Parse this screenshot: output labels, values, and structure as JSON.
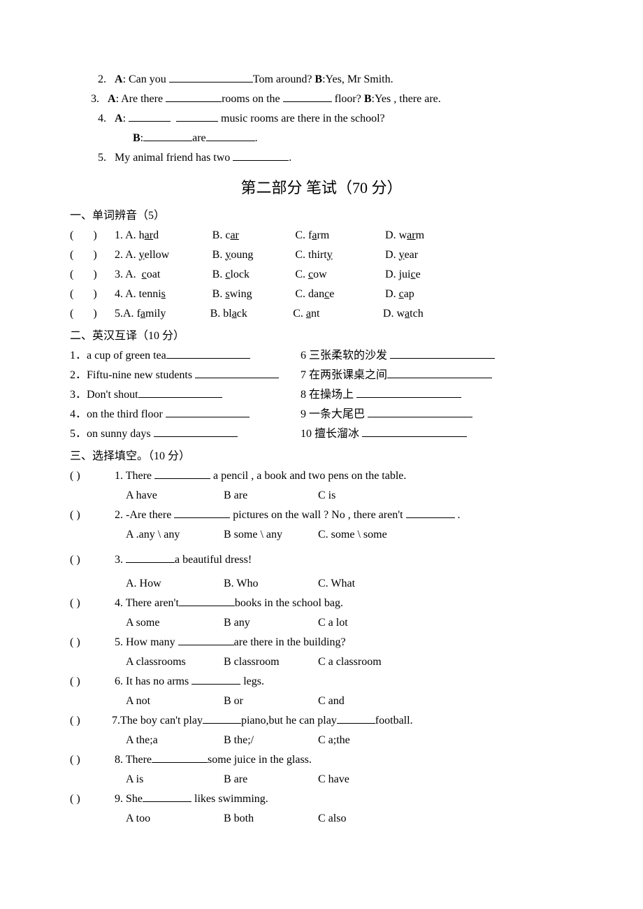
{
  "intro": {
    "q2": {
      "num": "2.",
      "a": "A",
      "t1": ": Can you ",
      "t2": "Tom around?  ",
      "b": "B",
      "t3": ":Yes,   Mr   Smith."
    },
    "q3": {
      "num": "3.",
      "a": "A",
      "t1": ": Are there  ",
      "t2": "rooms on the ",
      "t3": " floor?  ",
      "b": "B",
      "t4": ":Yes , there are."
    },
    "q4": {
      "num": "4.",
      "a": "A",
      "t1": ":  ",
      "t2": "  music rooms are there in the school?",
      "b": "B",
      "t3": ":",
      "t4": "are",
      "t5": "."
    },
    "q5": {
      "num": "5.",
      "t1": "My animal friend has two  ",
      "t2": "."
    }
  },
  "part2_title": "第二部分      笔试（70 分）",
  "s1": {
    "heading": "一、单词辨音（5）",
    "items": [
      {
        "A": [
          "h",
          "ar",
          "d"
        ],
        "B": [
          "c",
          "ar",
          " "
        ],
        "C": [
          "f",
          "a",
          "rm"
        ],
        "D": [
          "w",
          "ar",
          "m"
        ]
      },
      {
        "A": [
          "",
          "y",
          "ellow"
        ],
        "B": [
          "",
          "y",
          "oung"
        ],
        "C": [
          "thirt",
          "y",
          ""
        ],
        "D": [
          "",
          "y",
          "ear"
        ]
      },
      {
        "A": [
          " ",
          "c",
          "oat"
        ],
        "B": [
          "",
          "c",
          "lock"
        ],
        "C": [
          "",
          "c",
          "ow"
        ],
        "D": [
          "jui",
          "c",
          "e"
        ]
      },
      {
        "A": [
          "tenni",
          "s",
          " "
        ],
        "B": [
          "",
          "s",
          "wing"
        ],
        "C": [
          "dan",
          "c",
          "e"
        ],
        "D": [
          "",
          "c",
          "ap"
        ]
      },
      {
        "A": [
          "f",
          "a",
          "mily"
        ],
        "B": [
          "bl",
          "a",
          "ck"
        ],
        "C": [
          "",
          "a",
          "nt"
        ],
        "D": [
          "w",
          "a",
          "tch"
        ]
      }
    ]
  },
  "s2": {
    "heading": "二、英汉互译（10 分）",
    "left": [
      "1．a cup of green tea",
      "2．Fiftu-nine new students ",
      "3．Don't shout",
      "4．on the third floor  ",
      "5．on sunny days  "
    ],
    "right": [
      "6  三张柔软的沙发  ",
      "7  在两张课桌之间",
      "8  在操场上  ",
      "9  一条大尾巴  ",
      "10  擅长溜冰  "
    ]
  },
  "s3": {
    "heading": "三、选择填空。（10 分）",
    "items": [
      {
        "n": "1.",
        "stem_before": "There ",
        "stem_after": " a pencil , a book and two pens on the table.",
        "A": "A have",
        "B": "B are",
        "C": "C is"
      },
      {
        "n": "2.",
        "stem_before": "-Are there ",
        "stem_mid": " pictures on the wall ?  No  , there aren't ",
        "stem_after": " .",
        "A": "A .any \\ any",
        "B": "B some \\ any",
        "C": "C. some \\ some"
      },
      {
        "n": "3.",
        "stem_before": "",
        "stem_after": "a   beautiful dress!",
        "A": "A.  How",
        "B": "B. Who",
        "C": "C. What"
      },
      {
        "n": "4.",
        "stem_before": "There aren't",
        "stem_after": "books in the school bag.",
        "A": "A some",
        "B": "B any",
        "C": "C a lot"
      },
      {
        "n": "5.",
        "stem_before": "How many  ",
        "stem_after": "are there in the building?",
        "A": "A classrooms",
        "B": "B classroom",
        "C": "C a classroom"
      },
      {
        "n": "6.",
        "stem_before": "It has no arms  ",
        "stem_after": "  legs.",
        "A": "A not",
        "B": "B or",
        "C": "C and"
      },
      {
        "n": "7.",
        "stem_before": "The boy can't play",
        "stem_mid": "piano,but he can play",
        "stem_after": "football.",
        "A": "A the;a",
        "B": "B the;/",
        "C": "C a;the"
      },
      {
        "n": "8.",
        "stem_before": "There",
        "stem_after": "some juice in the glass.",
        "A": "A is",
        "B": "B are",
        "C": "C have"
      },
      {
        "n": "9.",
        "stem_before": "She",
        "stem_after": "  likes swimming.",
        "A": "A too",
        "B": "B both",
        "C": "C also"
      }
    ]
  }
}
